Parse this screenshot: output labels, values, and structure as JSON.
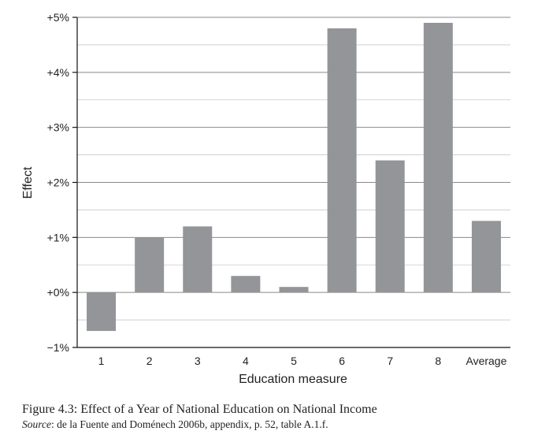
{
  "chart_data": {
    "type": "bar",
    "categories": [
      "1",
      "2",
      "3",
      "4",
      "5",
      "6",
      "7",
      "8",
      "Average"
    ],
    "values": [
      -0.7,
      1.0,
      1.2,
      0.3,
      0.1,
      4.8,
      2.4,
      4.9,
      1.3
    ],
    "ylabel": "Effect",
    "xlabel": "Education measure",
    "ylim": [
      -1,
      5
    ],
    "yticks": [
      -1,
      0,
      1,
      2,
      3,
      4,
      5
    ],
    "ytick_labels": [
      "−1%",
      "+0%",
      "+1%",
      "+2%",
      "+3%",
      "+4%",
      "+5%"
    ],
    "grid": true,
    "bar_color": "#939598",
    "grid_color": "#8a8a8a"
  },
  "caption": {
    "title": "Figure 4.3: Effect of a Year of National Education on National Income",
    "source_label": "Source",
    "source_text": ": de la Fuente and Doménech 2006b, appendix, p. 52, table A.1.f."
  }
}
